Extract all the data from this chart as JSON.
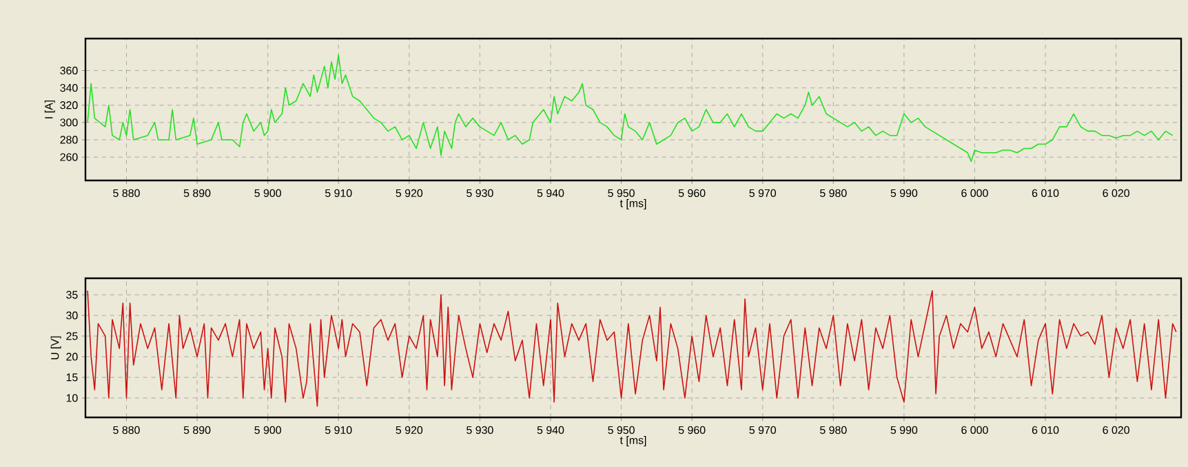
{
  "chart_data": [
    {
      "type": "line",
      "xlabel": "t [ms]",
      "ylabel": "I [A]",
      "grid": true,
      "xlim": [
        5874.2,
        6029.2
      ],
      "ylim": [
        233,
        397
      ],
      "xticks": [
        {
          "value": 5880,
          "label": "5 880"
        },
        {
          "value": 5890,
          "label": "5 890"
        },
        {
          "value": 5900,
          "label": "5 900"
        },
        {
          "value": 5910,
          "label": "5 910"
        },
        {
          "value": 5920,
          "label": "5 920"
        },
        {
          "value": 5930,
          "label": "5 930"
        },
        {
          "value": 5940,
          "label": "5 940"
        },
        {
          "value": 5950,
          "label": "5 950"
        },
        {
          "value": 5960,
          "label": "5 960"
        },
        {
          "value": 5970,
          "label": "5 970"
        },
        {
          "value": 5980,
          "label": "5 980"
        },
        {
          "value": 5990,
          "label": "5 990"
        },
        {
          "value": 6000,
          "label": "6 000"
        },
        {
          "value": 6010,
          "label": "6 010"
        },
        {
          "value": 6020,
          "label": "6 020"
        }
      ],
      "yticks": [
        260,
        280,
        300,
        320,
        340,
        360
      ],
      "x": [
        5874.5,
        5875,
        5875.5,
        5877,
        5877.5,
        5878,
        5879,
        5879.5,
        5880,
        5880.5,
        5881,
        5883,
        5884,
        5884.5,
        5886,
        5886.5,
        5887,
        5889,
        5889.5,
        5890,
        5892,
        5893,
        5893.5,
        5895,
        5896,
        5896.5,
        5897,
        5898,
        5899,
        5899.5,
        5900,
        5900.5,
        5901,
        5902,
        5902.5,
        5903,
        5904,
        5905,
        5906,
        5906.5,
        5907,
        5908,
        5908.5,
        5909,
        5909.5,
        5910,
        5910.5,
        5911,
        5912,
        5913,
        5914,
        5915,
        5916,
        5917,
        5918,
        5919,
        5920,
        5921,
        5922,
        5923,
        5924,
        5924.5,
        5925,
        5926,
        5926.5,
        5927,
        5928,
        5929,
        5930,
        5931,
        5932,
        5933,
        5934,
        5935,
        5936,
        5937,
        5937.5,
        5938,
        5939,
        5940,
        5940.5,
        5941,
        5942,
        5943,
        5944,
        5944.5,
        5945,
        5946,
        5947,
        5948,
        5949,
        5950,
        5950.5,
        5951,
        5952,
        5953,
        5954,
        5955,
        5956,
        5957,
        5958,
        5959,
        5960,
        5961,
        5962,
        5963,
        5964,
        5965,
        5966,
        5967,
        5968,
        5969,
        5970,
        5971,
        5972,
        5973,
        5974,
        5975,
        5976,
        5976.5,
        5977,
        5978,
        5979,
        5980,
        5981,
        5982,
        5983,
        5984,
        5985,
        5986,
        5987,
        5988,
        5989,
        5990,
        5991,
        5992,
        5993,
        5994,
        5995,
        5996,
        5997,
        5998,
        5999,
        5999.5,
        6000,
        6001,
        6002,
        6003,
        6004,
        6005,
        6006,
        6007,
        6008,
        6009,
        6010,
        6011,
        6012,
        6013,
        6014,
        6015,
        6016,
        6017,
        6018,
        6019,
        6020,
        6021,
        6022,
        6023,
        6024,
        6025,
        6026,
        6027,
        6028
      ],
      "series": [
        {
          "color": "#22e022",
          "values": [
            300,
            345,
            305,
            295,
            320,
            285,
            280,
            300,
            285,
            315,
            280,
            285,
            300,
            280,
            280,
            315,
            280,
            285,
            305,
            275,
            280,
            300,
            280,
            280,
            272,
            300,
            310,
            290,
            300,
            285,
            290,
            315,
            300,
            310,
            340,
            320,
            325,
            345,
            330,
            355,
            335,
            365,
            340,
            370,
            350,
            378,
            345,
            355,
            330,
            325,
            315,
            305,
            300,
            290,
            295,
            280,
            285,
            270,
            300,
            270,
            295,
            262,
            290,
            270,
            300,
            310,
            295,
            305,
            295,
            290,
            285,
            300,
            280,
            285,
            275,
            280,
            300,
            305,
            315,
            300,
            330,
            310,
            330,
            325,
            335,
            345,
            320,
            315,
            300,
            295,
            285,
            280,
            310,
            295,
            290,
            280,
            300,
            275,
            280,
            285,
            300,
            305,
            290,
            295,
            315,
            300,
            300,
            310,
            295,
            310,
            295,
            290,
            290,
            300,
            310,
            305,
            310,
            305,
            320,
            335,
            320,
            330,
            310,
            305,
            300,
            295,
            300,
            290,
            295,
            285,
            290,
            285,
            285,
            310,
            300,
            305,
            295,
            290,
            285,
            280,
            275,
            270,
            265,
            255,
            268,
            265,
            265,
            265,
            268,
            268,
            265,
            270,
            270,
            275,
            275,
            280,
            295,
            295,
            310,
            295,
            290,
            290,
            285,
            285,
            282,
            285,
            285,
            290,
            285,
            290,
            280,
            290,
            285
          ]
        }
      ]
    },
    {
      "type": "line",
      "xlabel": "t [ms]",
      "ylabel": "U [V]",
      "grid": true,
      "xlim": [
        5874.2,
        6029.2
      ],
      "ylim": [
        5.3,
        39
      ],
      "xticks": [
        {
          "value": 5880,
          "label": "5 880"
        },
        {
          "value": 5890,
          "label": "5 890"
        },
        {
          "value": 5900,
          "label": "5 900"
        },
        {
          "value": 5910,
          "label": "5 910"
        },
        {
          "value": 5920,
          "label": "5 920"
        },
        {
          "value": 5930,
          "label": "5 930"
        },
        {
          "value": 5940,
          "label": "5 940"
        },
        {
          "value": 5950,
          "label": "5 950"
        },
        {
          "value": 5960,
          "label": "5 960"
        },
        {
          "value": 5970,
          "label": "5 970"
        },
        {
          "value": 5980,
          "label": "5 980"
        },
        {
          "value": 5990,
          "label": "5 990"
        },
        {
          "value": 6000,
          "label": "6 000"
        },
        {
          "value": 6010,
          "label": "6 010"
        },
        {
          "value": 6020,
          "label": "6 020"
        }
      ],
      "yticks": [
        10,
        15,
        20,
        25,
        30,
        35
      ],
      "x": [
        5874.5,
        5875,
        5875.5,
        5876,
        5877,
        5877.5,
        5878,
        5879,
        5879.5,
        5880,
        5880.5,
        5881,
        5882,
        5883,
        5884,
        5885,
        5886,
        5887,
        5887.5,
        5888,
        5889,
        5890,
        5891,
        5891.5,
        5892,
        5893,
        5894,
        5895,
        5896,
        5896.5,
        5897,
        5898,
        5899,
        5899.5,
        5900,
        5900.5,
        5901,
        5902,
        5902.5,
        5903,
        5904,
        5905,
        5905.5,
        5906,
        5907,
        5907.5,
        5908,
        5909,
        5910,
        5910.5,
        5911,
        5912,
        5913,
        5914,
        5915,
        5916,
        5917,
        5918,
        5919,
        5920,
        5921,
        5922,
        5922.5,
        5923,
        5924,
        5924.5,
        5925,
        5925.5,
        5926,
        5927,
        5928,
        5929,
        5930,
        5931,
        5932,
        5933,
        5934,
        5935,
        5936,
        5937,
        5938,
        5939,
        5940,
        5940.5,
        5941,
        5942,
        5943,
        5944,
        5945,
        5946,
        5947,
        5948,
        5949,
        5950,
        5951,
        5952,
        5953,
        5954,
        5955,
        5955.5,
        5956,
        5957,
        5958,
        5959,
        5960,
        5961,
        5962,
        5963,
        5964,
        5965,
        5966,
        5967,
        5967.5,
        5968,
        5969,
        5970,
        5971,
        5972,
        5973,
        5974,
        5975,
        5976,
        5977,
        5978,
        5979,
        5980,
        5981,
        5982,
        5983,
        5984,
        5985,
        5986,
        5987,
        5988,
        5989,
        5990,
        5991,
        5992,
        5993,
        5994,
        5994.5,
        5995,
        5996,
        5997,
        5998,
        5999,
        6000,
        6001,
        6002,
        6003,
        6004,
        6005,
        6006,
        6007,
        6008,
        6009,
        6010,
        6011,
        6012,
        6013,
        6014,
        6015,
        6016,
        6017,
        6018,
        6019,
        6020,
        6021,
        6022,
        6023,
        6024,
        6025,
        6026,
        6027,
        6028,
        6028.5
      ],
      "series": [
        {
          "color": "#cc1111",
          "values": [
            36,
            20,
            12,
            28,
            25,
            10,
            29,
            22,
            33,
            10,
            33,
            18,
            28,
            22,
            27,
            12,
            28,
            10,
            30,
            22,
            27,
            20,
            28,
            10,
            27,
            24,
            28,
            20,
            29,
            10,
            28,
            22,
            26,
            12,
            22,
            10,
            27,
            20,
            9,
            28,
            22,
            10,
            14,
            28,
            8,
            29,
            15,
            30,
            22,
            29,
            20,
            28,
            26,
            13,
            27,
            29,
            24,
            28,
            15,
            25,
            22,
            30,
            12,
            29,
            20,
            35,
            13,
            32,
            12,
            30,
            22,
            15,
            28,
            21,
            28,
            24,
            31,
            19,
            24,
            10,
            28,
            13,
            29,
            9,
            33,
            20,
            28,
            24,
            28,
            14,
            29,
            24,
            26,
            10,
            28,
            11,
            24,
            30,
            19,
            32,
            12,
            28,
            22,
            10,
            25,
            14,
            30,
            20,
            27,
            13,
            29,
            12,
            34,
            20,
            27,
            12,
            28,
            10,
            25,
            29,
            10,
            27,
            13,
            27,
            22,
            30,
            13,
            28,
            19,
            29,
            12,
            27,
            22,
            30,
            15,
            9,
            29,
            20,
            28,
            36,
            11,
            25,
            30,
            22,
            28,
            26,
            32,
            22,
            26,
            20,
            28,
            24,
            20,
            29,
            13,
            24,
            28,
            11,
            29,
            22,
            28,
            25,
            26,
            23,
            30,
            15,
            27,
            22,
            29,
            14,
            28,
            12,
            29,
            10,
            28,
            26
          ]
        }
      ]
    }
  ]
}
